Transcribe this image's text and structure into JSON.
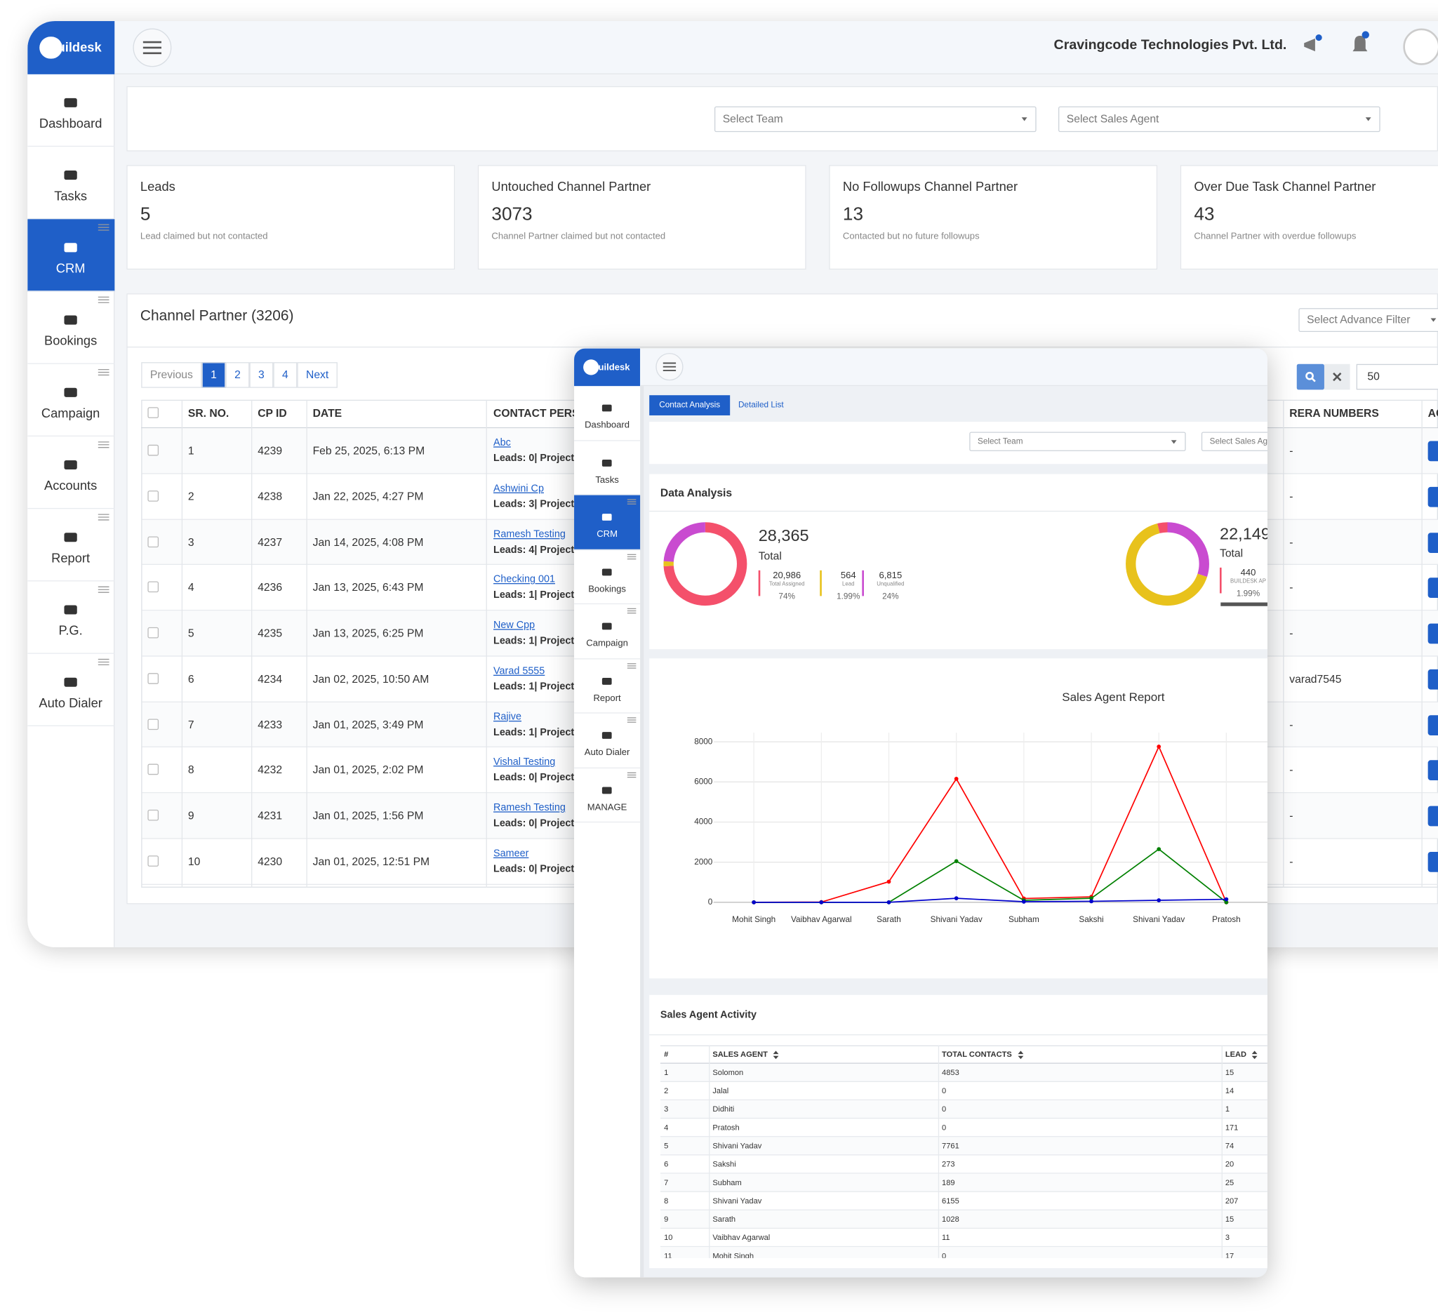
{
  "main": {
    "logo": "Buildesk",
    "nav": [
      "Dashboard",
      "Tasks",
      "CRM",
      "Bookings",
      "Campaign",
      "Accounts",
      "Report",
      "P.G.",
      "Auto Dialer"
    ],
    "company": "Cravingcode Technologies Pvt. Ltd.",
    "filters": [
      "Select Team",
      "Select Sales Agent"
    ],
    "cards": [
      {
        "title": "Leads",
        "value": 5,
        "note": "Lead claimed but not contacted"
      },
      {
        "title": "Untouched Channel Partner",
        "value": 3073,
        "note": "Channel Partner claimed but not contacted"
      },
      {
        "title": "No Followups Channel Partner",
        "value": 13,
        "note": "Contacted but no future followups"
      },
      {
        "title": "Over Due Task Channel Partner",
        "value": 43,
        "note": "Channel Partner with overdue followups"
      }
    ],
    "panel_title": "Channel Partner (3206)",
    "advance_filter": "Select Advance Filter",
    "pagination": [
      "Previous",
      1,
      2,
      3,
      4,
      "Next"
    ],
    "page_size": 50,
    "table": {
      "headers": [
        "SR. NO.",
        "CP ID",
        "DATE",
        "CONTACT PERSON",
        "RERA NUMBERS",
        "ACTION"
      ],
      "rows": [
        {
          "sr": 1,
          "cp_id": 4239,
          "date": "Feb 25, 2025, 6:13 PM",
          "contact": "Abc",
          "leads": "Leads: 0| Project:",
          "rera": "-"
        },
        {
          "sr": 2,
          "cp_id": 4238,
          "date": "Jan 22, 2025, 4:27 PM",
          "contact": "Ashwini Cp",
          "leads": "Leads: 3| Project:",
          "rera": "-"
        },
        {
          "sr": 3,
          "cp_id": 4237,
          "date": "Jan 14, 2025, 4:08 PM",
          "contact": "Ramesh Testing",
          "leads": "Leads: 4| Project:",
          "rera": "-"
        },
        {
          "sr": 4,
          "cp_id": 4236,
          "date": "Jan 13, 2025, 6:43 PM",
          "contact": "Checking 001",
          "leads": "Leads: 1| Project:",
          "rera": "-"
        },
        {
          "sr": 5,
          "cp_id": 4235,
          "date": "Jan 13, 2025, 6:25 PM",
          "contact": "New Cpp",
          "leads": "Leads: 1| Project:",
          "rera": "-"
        },
        {
          "sr": 6,
          "cp_id": 4234,
          "date": "Jan 02, 2025, 10:50 AM",
          "contact": "Varad 5555",
          "leads": "Leads: 1| Project:",
          "rera": "varad7545"
        },
        {
          "sr": 7,
          "cp_id": 4233,
          "date": "Jan 01, 2025, 3:49 PM",
          "contact": "Rajive",
          "leads": "Leads: 1| Project:",
          "rera": "-"
        },
        {
          "sr": 8,
          "cp_id": 4232,
          "date": "Jan 01, 2025, 2:02 PM",
          "contact": "Vishal Testing",
          "leads": "Leads: 0| Project:",
          "rera": "-"
        },
        {
          "sr": 9,
          "cp_id": 4231,
          "date": "Jan 01, 2025, 1:56 PM",
          "contact": "Ramesh Testing",
          "leads": "Leads: 0| Project:",
          "rera": "-"
        },
        {
          "sr": 10,
          "cp_id": 4230,
          "date": "Jan 01, 2025, 12:51 PM",
          "contact": "Sameer",
          "leads": "Leads: 0| Project:",
          "rera": "-"
        }
      ]
    }
  },
  "overlay": {
    "logo": "Buildesk",
    "nav": [
      "Dashboard",
      "Tasks",
      "CRM",
      "Bookings",
      "Campaign",
      "Report",
      "Auto Dialer",
      "MANAGE"
    ],
    "tabs": [
      "Contact Analysis",
      "Detailed List"
    ],
    "filters": [
      "Select Team",
      "Select Sales Agent"
    ],
    "data_analysis": {
      "title": "Data Analysis",
      "donuts": [
        {
          "total": "28,365",
          "total_label": "Total",
          "parts": [
            {
              "value": "20,986",
              "label": "Total Assigned",
              "pct": "74%"
            },
            {
              "value": "564",
              "label": "Lead",
              "pct": "1.99%"
            },
            {
              "value": "6,815",
              "label": "Unqualified",
              "pct": "24%"
            }
          ]
        },
        {
          "total": "22,149",
          "total_label": "Total",
          "parts": [
            {
              "value": "440",
              "label": "BUILDESK AP",
              "pct": "1.99%"
            }
          ]
        }
      ]
    },
    "chart": {
      "type": "line",
      "title": "Sales Agent Report",
      "categories": [
        "Mohit Singh",
        "Vaibhav Agarwal",
        "Sarath",
        "Shivani Yadav",
        "Subham",
        "Sakshi",
        "Shivani Yadav",
        "Pratosh"
      ],
      "series": [
        {
          "color": "#ff0000",
          "values": [
            0,
            11,
            1028,
            6155,
            189,
            273,
            7761,
            0
          ]
        },
        {
          "color": "#008000",
          "values": [
            0,
            0,
            0,
            2050,
            100,
            200,
            2650,
            0
          ]
        },
        {
          "color": "#0000cc",
          "values": [
            0,
            0,
            0,
            200,
            30,
            50,
            100,
            150
          ]
        }
      ],
      "ylim": [
        0,
        8000
      ],
      "yticks": [
        0,
        2000,
        4000,
        6000,
        8000
      ],
      "grid": true
    },
    "activity": {
      "title": "Sales Agent Activity",
      "headers": [
        "#",
        "SALES AGENT",
        "TOTAL CONTACTS",
        "LEAD"
      ],
      "rows": [
        [
          1,
          "Solomon",
          4853,
          15
        ],
        [
          2,
          "Jalal",
          0,
          14
        ],
        [
          3,
          "Didhiti",
          0,
          1
        ],
        [
          4,
          "Pratosh",
          0,
          171
        ],
        [
          5,
          "Shivani Yadav",
          7761,
          74
        ],
        [
          6,
          "Sakshi",
          273,
          20
        ],
        [
          7,
          "Subham",
          189,
          25
        ],
        [
          8,
          "Shivani Yadav",
          6155,
          207
        ],
        [
          9,
          "Sarath",
          1028,
          15
        ],
        [
          10,
          "Vaibhav Agarwal",
          11,
          3
        ],
        [
          11,
          "Mohit Singh",
          0,
          17
        ]
      ]
    }
  }
}
